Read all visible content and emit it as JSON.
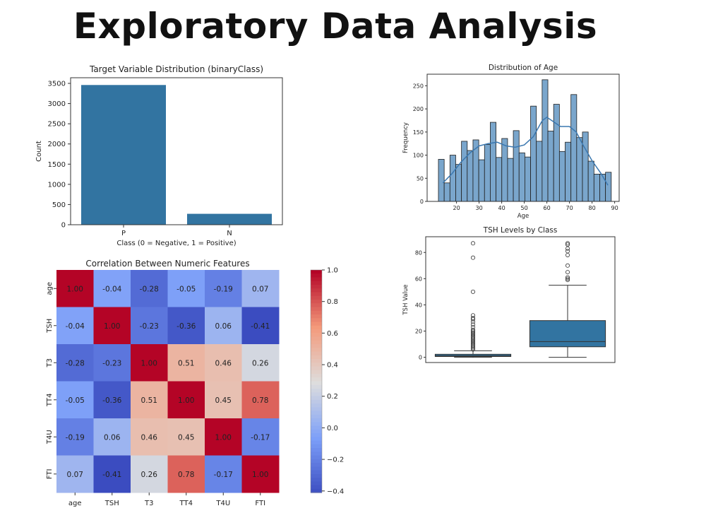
{
  "page": {
    "title": "Exploratory Data Analysis"
  },
  "chart_data": [
    {
      "id": "target",
      "type": "bar",
      "title": "Target Variable Distribution (binaryClass)",
      "xlabel": "Class (0 = Negative, 1 = Positive)",
      "ylabel": "Count",
      "categories": [
        "P",
        "N"
      ],
      "values": [
        3460,
        270
      ],
      "ylim": [
        0,
        3640
      ],
      "yticks": [
        0,
        500,
        1000,
        1500,
        2000,
        2500,
        3000,
        3500
      ],
      "color": "#3274a1"
    },
    {
      "id": "age",
      "type": "bar",
      "title": "Distribution of Age",
      "xlabel": "Age",
      "ylabel": "Frequency",
      "bin_edges": [
        12.0,
        14.55,
        17.1,
        19.65,
        22.2,
        24.75,
        27.3,
        29.85,
        32.4,
        34.95,
        37.5,
        40.05,
        42.6,
        45.15,
        47.7,
        50.25,
        52.8,
        55.35,
        57.9,
        60.45,
        63.0,
        65.55,
        68.1,
        70.65,
        73.2,
        75.75,
        78.3,
        80.85,
        83.4,
        85.95,
        88.5
      ],
      "counts": [
        91,
        40,
        100,
        80,
        130,
        110,
        133,
        90,
        123,
        171,
        95,
        136,
        93,
        153,
        105,
        96,
        206,
        130,
        263,
        152,
        210,
        108,
        128,
        231,
        138,
        150,
        87,
        59,
        59,
        63
      ],
      "kde": [
        [
          14,
          40
        ],
        [
          18,
          60
        ],
        [
          22,
          85
        ],
        [
          26,
          105
        ],
        [
          30,
          120
        ],
        [
          34,
          125
        ],
        [
          38,
          128
        ],
        [
          42,
          120
        ],
        [
          46,
          117
        ],
        [
          50,
          122
        ],
        [
          54,
          140
        ],
        [
          58,
          175
        ],
        [
          60,
          182
        ],
        [
          63,
          172
        ],
        [
          66,
          162
        ],
        [
          70,
          162
        ],
        [
          73,
          150
        ],
        [
          76,
          122
        ],
        [
          80,
          88
        ],
        [
          84,
          60
        ],
        [
          87,
          35
        ]
      ],
      "xlim": [
        7,
        92
      ],
      "ylim": [
        0,
        275
      ],
      "xticks": [
        20,
        30,
        40,
        50,
        60,
        70,
        80,
        90
      ],
      "yticks": [
        0,
        50,
        100,
        150,
        200,
        250
      ],
      "bar_color": "#7aa6cc",
      "kde_color": "#3b78b0"
    },
    {
      "id": "corr",
      "type": "heatmap",
      "title": "Correlation Between Numeric Features",
      "labels": [
        "age",
        "TSH",
        "T3",
        "TT4",
        "T4U",
        "FTI"
      ],
      "matrix": [
        [
          1.0,
          -0.04,
          -0.28,
          -0.05,
          -0.19,
          0.07
        ],
        [
          -0.04,
          1.0,
          -0.23,
          -0.36,
          0.06,
          -0.41
        ],
        [
          -0.28,
          -0.23,
          1.0,
          0.51,
          0.46,
          0.26
        ],
        [
          -0.05,
          -0.36,
          0.51,
          1.0,
          0.45,
          0.78
        ],
        [
          -0.19,
          0.06,
          0.46,
          0.45,
          1.0,
          -0.17
        ],
        [
          0.07,
          -0.41,
          0.26,
          0.78,
          -0.17,
          1.0
        ]
      ],
      "vmin": -0.41,
      "vmax": 1.0,
      "colorbar_ticks": [
        1.0,
        0.8,
        0.6,
        0.4,
        0.2,
        0.0,
        -0.2,
        -0.4
      ],
      "colorbar_labels": [
        "1.0",
        "0.8",
        "0.6",
        "0.4",
        "0.2",
        "0.0",
        "−0.2",
        "−0.4"
      ],
      "colormap": "coolwarm"
    },
    {
      "id": "tsh",
      "type": "box",
      "title": "TSH Levels by Class",
      "ylabel": "TSH Value",
      "ylim": [
        -4,
        92
      ],
      "yticks": [
        0,
        20,
        40,
        60,
        80
      ],
      "boxes": [
        {
          "q1": 0.6,
          "median": 1.2,
          "q3": 2.3,
          "whisker_low": 0,
          "whisker_high": 5,
          "outliers": [
            6,
            7,
            8,
            9,
            10,
            11,
            12,
            13,
            14,
            15,
            16,
            17,
            18,
            19,
            20,
            21,
            23,
            25,
            27,
            29,
            30,
            32,
            50,
            76,
            87
          ]
        },
        {
          "q1": 8,
          "median": 12,
          "q3": 28,
          "whisker_low": 0,
          "whisker_high": 55,
          "outliers": [
            59,
            60,
            61,
            65,
            70,
            78,
            81,
            83,
            86,
            87
          ]
        }
      ],
      "color": "#3274a1"
    }
  ]
}
